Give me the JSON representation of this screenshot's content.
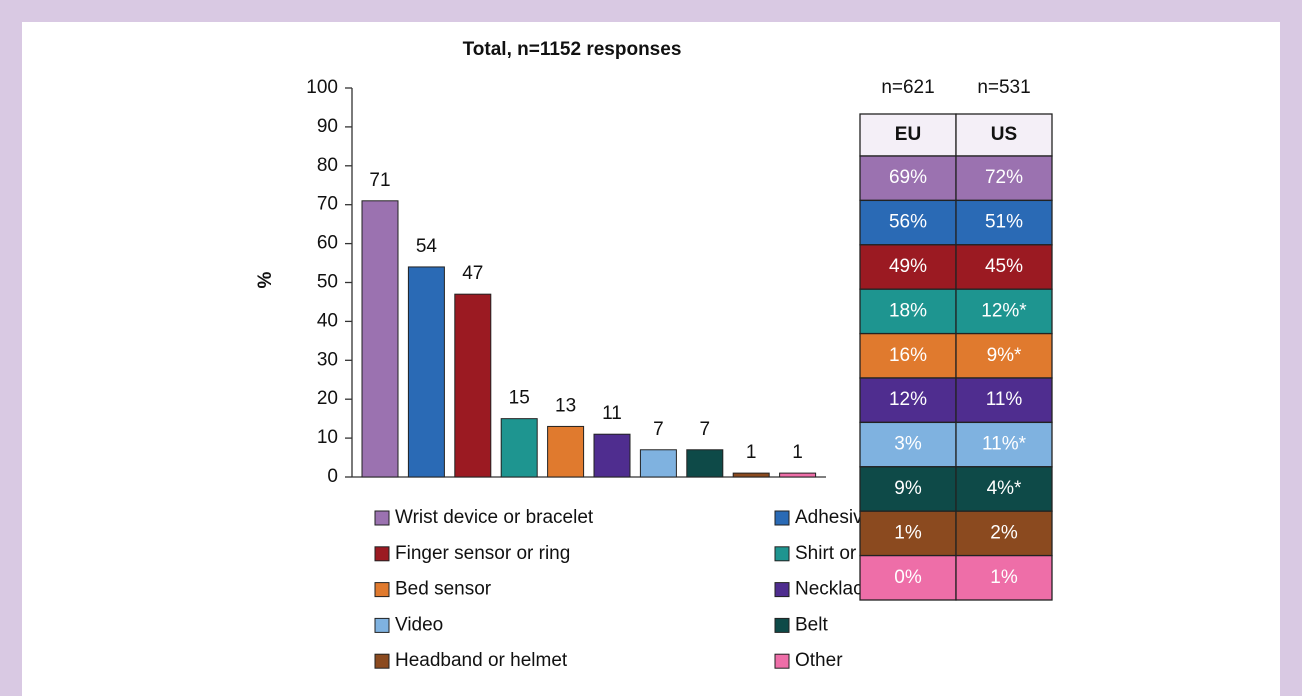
{
  "chart_data": {
    "type": "bar",
    "title": "Total, n=1152 responses",
    "ylabel": "%",
    "categories": [
      "Wrist device or bracelet",
      "Adhesive patch",
      "Finger sensor or ring",
      "Shirt or pyjamas",
      "Bed sensor",
      "Necklace",
      "Video",
      "Belt",
      "Headband or helmet",
      "Other"
    ],
    "values": [
      71,
      54,
      47,
      15,
      13,
      11,
      7,
      7,
      1,
      1
    ],
    "colors": [
      "#9b72b0",
      "#2a6ab5",
      "#9b1a22",
      "#1e9590",
      "#e07a2e",
      "#4f2d8f",
      "#7fb2e0",
      "#0e4a48",
      "#8b4a1f",
      "#ee6ea8"
    ],
    "ylim": [
      0,
      100
    ],
    "yticks": [
      0,
      10,
      20,
      30,
      40,
      50,
      60,
      70,
      80,
      90,
      100
    ],
    "grid": false
  },
  "table": {
    "n_labels": [
      "n=621",
      "n=531"
    ],
    "headers": [
      "EU",
      "US"
    ],
    "rows": [
      [
        "69%",
        "72%"
      ],
      [
        "56%",
        "51%"
      ],
      [
        "49%",
        "45%"
      ],
      [
        "18%",
        "12%*"
      ],
      [
        "16%",
        "9%*"
      ],
      [
        "12%",
        "11%"
      ],
      [
        "3%",
        "11%*"
      ],
      [
        "9%",
        "4%*"
      ],
      [
        "1%",
        "2%"
      ],
      [
        "0%",
        "1%"
      ]
    ]
  }
}
